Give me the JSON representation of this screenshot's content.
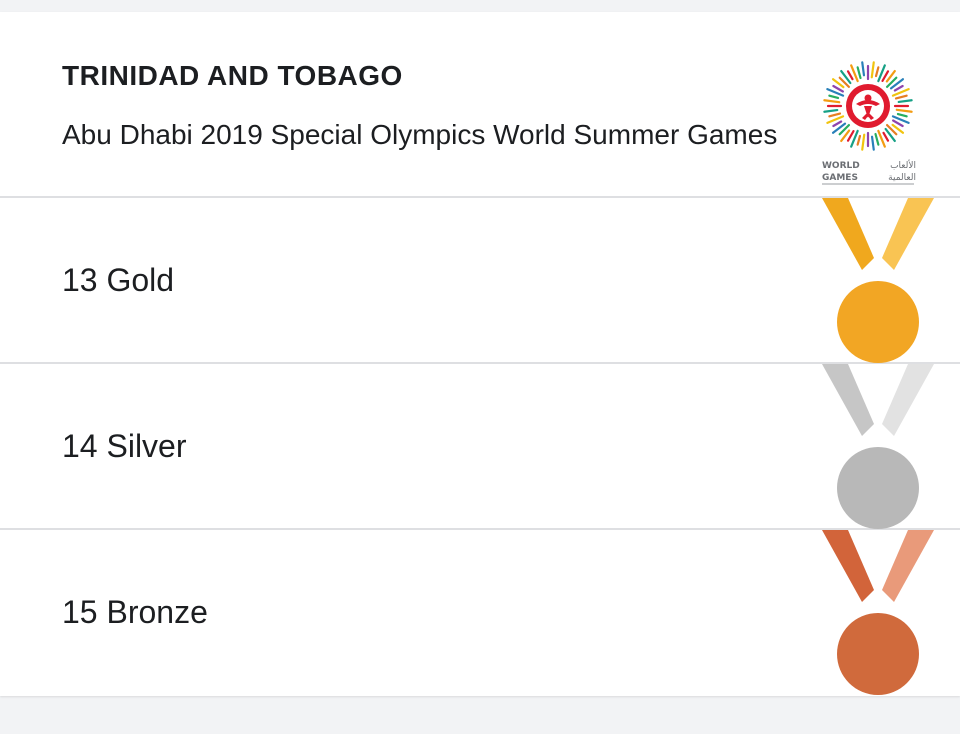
{
  "header": {
    "country": "TRINIDAD AND TOBAGO",
    "event": "Abu Dhabi 2019 Special Olympics World Summer Games",
    "logo": {
      "icon": "special-olympics-world-games-logo",
      "line1": "WORLD",
      "line2": "GAMES",
      "arabic1": "الألعاب",
      "arabic2": "العالمية"
    }
  },
  "medals": [
    {
      "count": "13",
      "type": "Gold",
      "label": "13 Gold",
      "icon": "gold-medal-icon",
      "ribbon_dark": "#f0a81e",
      "ribbon_light": "#f9c453",
      "disc": "#f2a624"
    },
    {
      "count": "14",
      "type": "Silver",
      "label": "14 Silver",
      "icon": "silver-medal-icon",
      "ribbon_dark": "#c6c6c6",
      "ribbon_light": "#e2e2e2",
      "disc": "#b8b8b8"
    },
    {
      "count": "15",
      "type": "Bronze",
      "label": "15 Bronze",
      "icon": "bronze-medal-icon",
      "ribbon_dark": "#d2643a",
      "ribbon_light": "#e99a7a",
      "disc": "#d06a3c"
    }
  ]
}
